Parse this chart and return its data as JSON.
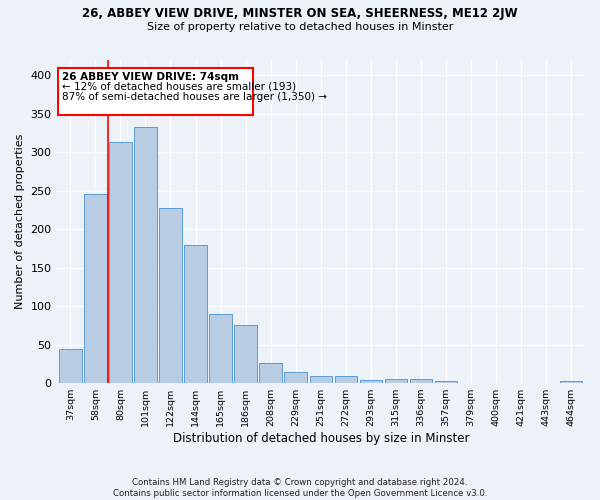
{
  "title1": "26, ABBEY VIEW DRIVE, MINSTER ON SEA, SHEERNESS, ME12 2JW",
  "title2": "Size of property relative to detached houses in Minster",
  "xlabel": "Distribution of detached houses by size in Minster",
  "ylabel": "Number of detached properties",
  "footnote": "Contains HM Land Registry data © Crown copyright and database right 2024.\nContains public sector information licensed under the Open Government Licence v3.0.",
  "bar_labels": [
    "37sqm",
    "58sqm",
    "80sqm",
    "101sqm",
    "122sqm",
    "144sqm",
    "165sqm",
    "186sqm",
    "208sqm",
    "229sqm",
    "251sqm",
    "272sqm",
    "293sqm",
    "315sqm",
    "336sqm",
    "357sqm",
    "379sqm",
    "400sqm",
    "421sqm",
    "443sqm",
    "464sqm"
  ],
  "bar_values": [
    44,
    246,
    313,
    333,
    227,
    180,
    90,
    75,
    26,
    15,
    9,
    9,
    4,
    5,
    5,
    3,
    0,
    0,
    0,
    0,
    3
  ],
  "bar_color": "#b8cce4",
  "bar_edge_color": "#5b9bd5",
  "property_label": "26 ABBEY VIEW DRIVE: 74sqm",
  "pct_smaller": "← 12% of detached houses are smaller (193)",
  "pct_larger": "87% of semi-detached houses are larger (1,350) →",
  "ylim": [
    0,
    420
  ],
  "yticks": [
    0,
    50,
    100,
    150,
    200,
    250,
    300,
    350,
    400
  ],
  "background_color": "#edf1f8",
  "grid_color": "#d0d8e8"
}
